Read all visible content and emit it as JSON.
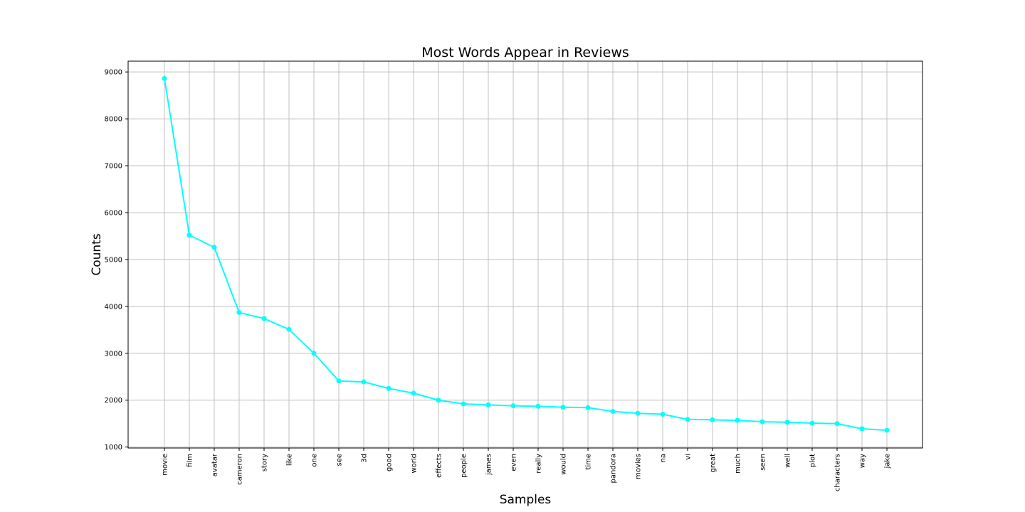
{
  "chart_data": {
    "type": "line",
    "title": "Most Words Appear in Reviews",
    "xlabel": "Samples",
    "ylabel": "Counts",
    "categories": [
      "movie",
      "film",
      "avatar",
      "cameron",
      "story",
      "like",
      "one",
      "see",
      "3d",
      "good",
      "world",
      "effects",
      "people",
      "james",
      "even",
      "really",
      "would",
      "time",
      "pandora",
      "movies",
      "na",
      "vi",
      "great",
      "much",
      "seen",
      "well",
      "plot",
      "characters",
      "way",
      "jake"
    ],
    "series": [
      {
        "values": [
          8860,
          5520,
          5260,
          3870,
          3740,
          3510,
          3000,
          2410,
          2390,
          2250,
          2150,
          2000,
          1920,
          1900,
          1880,
          1870,
          1850,
          1840,
          1760,
          1720,
          1700,
          1590,
          1580,
          1570,
          1540,
          1530,
          1510,
          1500,
          1390,
          1360
        ],
        "color": "#00ffff"
      }
    ],
    "ylim": [
      980,
      9230
    ],
    "yticks": [
      1000,
      2000,
      3000,
      4000,
      5000,
      6000,
      7000,
      8000,
      9000
    ],
    "grid": true,
    "marker": "circle"
  }
}
